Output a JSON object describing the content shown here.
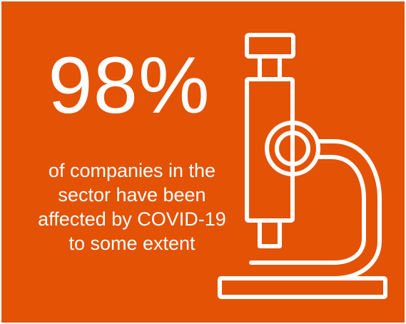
{
  "colors": {
    "background": "#E35205",
    "foreground": "#FFFFFF"
  },
  "stat": {
    "value": "98%",
    "caption_lines": [
      "of companies in the",
      "sector have been",
      "affected by COVID-19",
      "to some extent"
    ]
  },
  "illustration": {
    "icon": "microscope-icon"
  }
}
